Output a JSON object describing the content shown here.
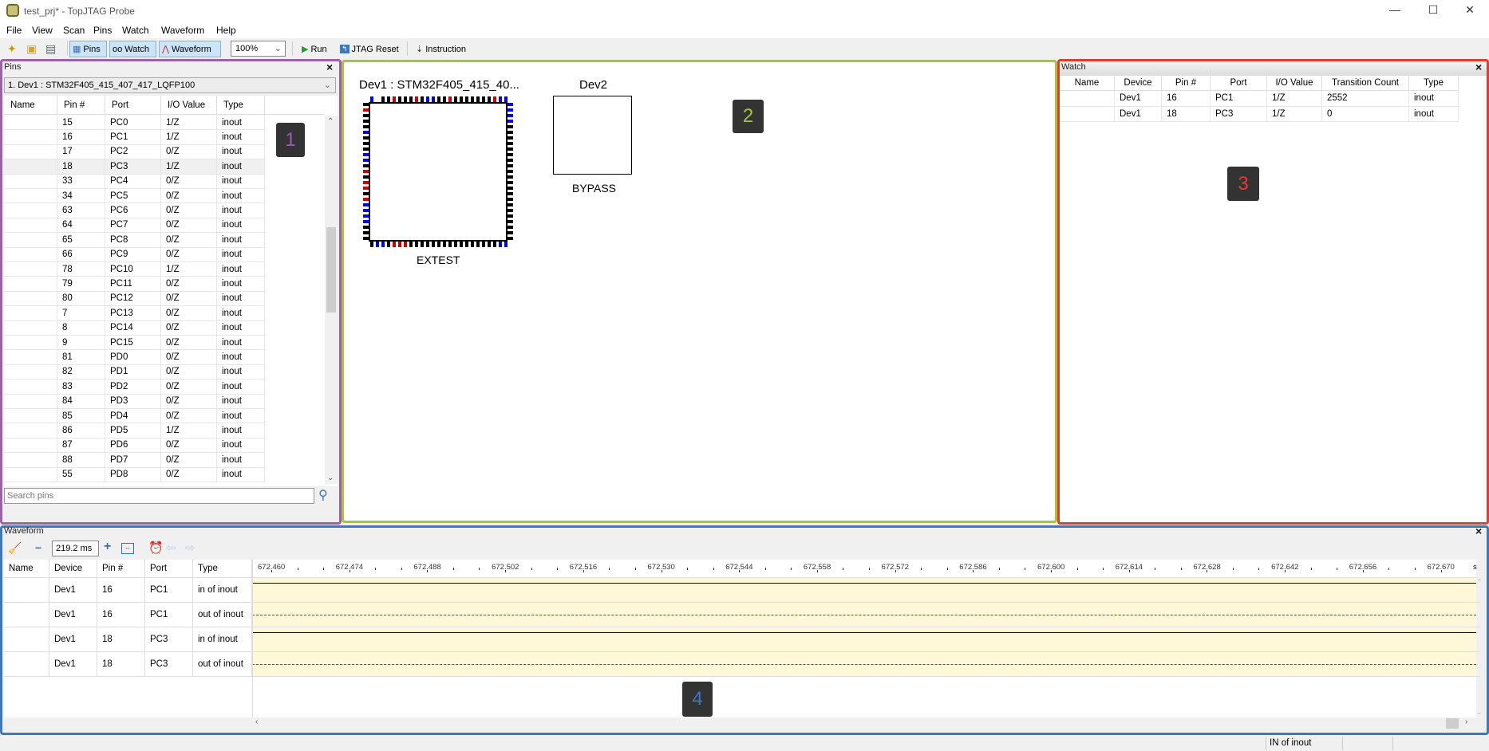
{
  "window": {
    "title": "test_prj* - TopJTAG Probe",
    "minimize": "—",
    "maximize": "☐",
    "close": "✕"
  },
  "menu": [
    "File",
    "View",
    "Scan",
    "Pins",
    "Watch",
    "Waveform",
    "Help"
  ],
  "toolbar": {
    "pins": "Pins",
    "watch": "Watch",
    "waveform": "Waveform",
    "zoom": "100%",
    "run": "Run",
    "jtag_reset": "JTAG Reset",
    "instruction": "Instruction"
  },
  "pins_panel": {
    "title": "Pins",
    "device_select": "1.  Dev1 : STM32F405_415_407_417_LQFP100",
    "columns": [
      "Name",
      "Pin #",
      "Port",
      "I/O Value",
      "Type"
    ],
    "rows": [
      [
        "",
        "15",
        "PC0",
        "1/Z",
        "inout"
      ],
      [
        "",
        "16",
        "PC1",
        "1/Z",
        "inout"
      ],
      [
        "",
        "17",
        "PC2",
        "0/Z",
        "inout"
      ],
      [
        "",
        "18",
        "PC3",
        "1/Z",
        "inout"
      ],
      [
        "",
        "33",
        "PC4",
        "0/Z",
        "inout"
      ],
      [
        "",
        "34",
        "PC5",
        "0/Z",
        "inout"
      ],
      [
        "",
        "63",
        "PC6",
        "0/Z",
        "inout"
      ],
      [
        "",
        "64",
        "PC7",
        "0/Z",
        "inout"
      ],
      [
        "",
        "65",
        "PC8",
        "0/Z",
        "inout"
      ],
      [
        "",
        "66",
        "PC9",
        "0/Z",
        "inout"
      ],
      [
        "",
        "78",
        "PC10",
        "1/Z",
        "inout"
      ],
      [
        "",
        "79",
        "PC11",
        "0/Z",
        "inout"
      ],
      [
        "",
        "80",
        "PC12",
        "0/Z",
        "inout"
      ],
      [
        "",
        "7",
        "PC13",
        "0/Z",
        "inout"
      ],
      [
        "",
        "8",
        "PC14",
        "0/Z",
        "inout"
      ],
      [
        "",
        "9",
        "PC15",
        "0/Z",
        "inout"
      ],
      [
        "",
        "81",
        "PD0",
        "0/Z",
        "inout"
      ],
      [
        "",
        "82",
        "PD1",
        "0/Z",
        "inout"
      ],
      [
        "",
        "83",
        "PD2",
        "0/Z",
        "inout"
      ],
      [
        "",
        "84",
        "PD3",
        "0/Z",
        "inout"
      ],
      [
        "",
        "85",
        "PD4",
        "0/Z",
        "inout"
      ],
      [
        "",
        "86",
        "PD5",
        "1/Z",
        "inout"
      ],
      [
        "",
        "87",
        "PD6",
        "0/Z",
        "inout"
      ],
      [
        "",
        "88",
        "PD7",
        "0/Z",
        "inout"
      ],
      [
        "",
        "55",
        "PD8",
        "0/Z",
        "inout"
      ]
    ],
    "selected_row": 3,
    "search_placeholder": "Search pins"
  },
  "scan_view": {
    "dev1": {
      "label": "Dev1 : STM32F405_415_40...",
      "mode": "EXTEST",
      "pin_states": {
        "top": "B_KKRKKKRKBBKKRKKKKKKKRBB",
        "right": "BBBBKKKKKKKKKKKKKKKKKKKKK",
        "bottom": "KBBKRRRKKKKKKKKKKKKKKKKBB",
        "left": "KRKKKBKKKBBKRKRRKRBBBBKKK"
      }
    },
    "dev2": {
      "label": "Dev2",
      "mode": "BYPASS"
    },
    "pin_colors": {
      "B": "#0000ff",
      "R": "#d00000",
      "K": "#000000"
    }
  },
  "watch_panel": {
    "title": "Watch",
    "columns": [
      "Name",
      "Device",
      "Pin #",
      "Port",
      "I/O Value",
      "Transition Count",
      "Type"
    ],
    "rows": [
      [
        "",
        "Dev1",
        "16",
        "PC1",
        "1/Z",
        "2552",
        "inout"
      ],
      [
        "",
        "Dev1",
        "18",
        "PC3",
        "1/Z",
        "0",
        "inout"
      ]
    ]
  },
  "waveform_panel": {
    "title": "Waveform",
    "time_span": "219.2 ms",
    "columns": [
      "Name",
      "Device",
      "Pin #",
      "Port",
      "Type"
    ],
    "rows": [
      [
        "",
        "Dev1",
        "16",
        "PC1",
        "in of inout"
      ],
      [
        "",
        "Dev1",
        "16",
        "PC1",
        "out of inout"
      ],
      [
        "",
        "Dev1",
        "18",
        "PC3",
        "in of inout"
      ],
      [
        "",
        "Dev1",
        "18",
        "PC3",
        "out of inout"
      ]
    ],
    "ruler": [
      "672.460",
      "672.474",
      "672.488",
      "672.502",
      "672.516",
      "672.530",
      "672.544",
      "672.558",
      "672.572",
      "672.586",
      "672.600",
      "672.614",
      "672.628",
      "672.642",
      "672.656",
      "672.670"
    ],
    "ruler_unit": "s",
    "signal_colors": {
      "in": "#000060",
      "out": "#d0104c"
    }
  },
  "status": {
    "text": "IN of inout"
  },
  "annotations": [
    {
      "label": "1",
      "color": "#9b59b6"
    },
    {
      "label": "2",
      "color": "#a5c63b"
    },
    {
      "label": "3",
      "color": "#e8392f"
    },
    {
      "label": "4",
      "color": "#3a78c2"
    }
  ],
  "region_colors": {
    "pins": "#9b62a8",
    "scan": "#a5c63b",
    "watch": "#e8392f",
    "waveform": "#3a78c2"
  }
}
